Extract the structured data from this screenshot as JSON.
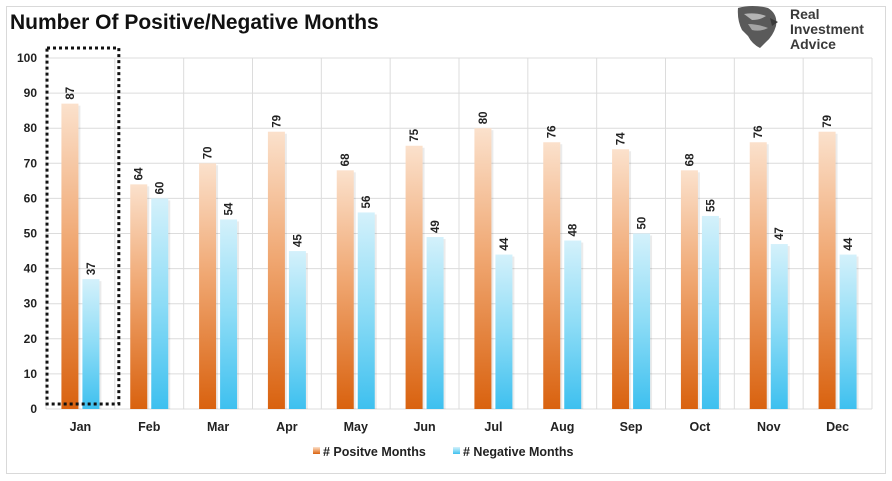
{
  "chart_data": {
    "type": "bar",
    "title": "Number Of Positive/Negative Months",
    "categories": [
      "Jan",
      "Feb",
      "Mar",
      "Apr",
      "May",
      "Jun",
      "Jul",
      "Aug",
      "Sep",
      "Oct",
      "Nov",
      "Dec"
    ],
    "series": [
      {
        "name": "# Positve Months",
        "values": [
          87,
          64,
          70,
          79,
          68,
          75,
          80,
          76,
          74,
          68,
          76,
          79
        ],
        "color": "#e0731e"
      },
      {
        "name": "# Negative Months",
        "values": [
          37,
          60,
          54,
          45,
          56,
          49,
          44,
          48,
          50,
          55,
          47,
          44
        ],
        "color": "#4fc6f0"
      }
    ],
    "ylim": [
      0,
      100
    ],
    "yticks": [
      0,
      10,
      20,
      30,
      40,
      50,
      60,
      70,
      80,
      90,
      100
    ],
    "grid": true,
    "legend_position": "bottom-center",
    "highlight_category": "Jan",
    "xlabel": "",
    "ylabel": ""
  },
  "brand": {
    "lines": [
      "Real",
      "Investment",
      "Advice"
    ],
    "logo_icon": "eagle-head-icon",
    "text_color": "#3a3a3a"
  }
}
